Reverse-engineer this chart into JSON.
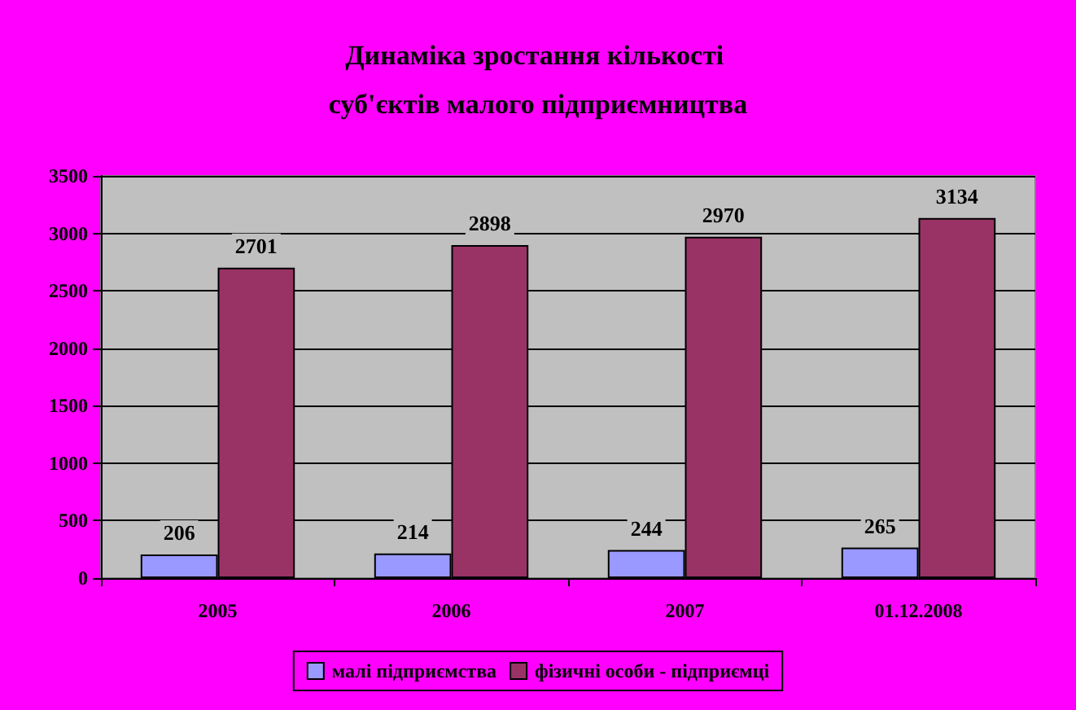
{
  "chart_data": {
    "type": "bar",
    "title": "Динаміка зростання кількості суб'єктів малого підприємництва",
    "categories": [
      "2005",
      "2006",
      "2007",
      "01.12.2008"
    ],
    "series": [
      {
        "name": "малі підприємства",
        "color": "#9999ff",
        "values": [
          206,
          214,
          244,
          265
        ]
      },
      {
        "name": "фізичні особи - підприємці",
        "color": "#993366",
        "values": [
          2701,
          2898,
          2970,
          3134
        ]
      }
    ],
    "ylim": [
      0,
      3500
    ],
    "yticks": [
      0,
      500,
      1000,
      1500,
      2000,
      2500,
      3000,
      3500
    ],
    "grid": "y",
    "legend": "bottom",
    "data_labels": true
  }
}
